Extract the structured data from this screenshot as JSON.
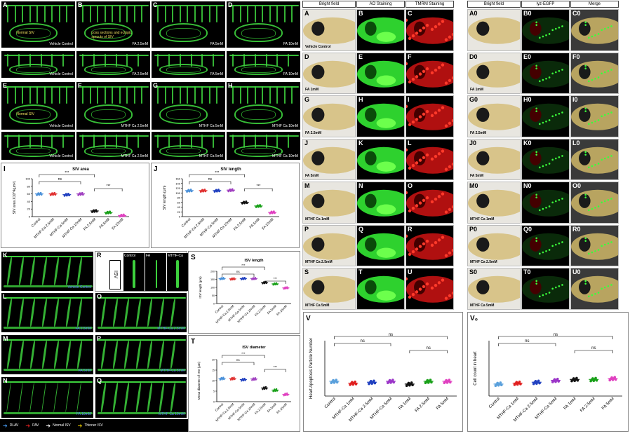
{
  "left_top_panels": [
    {
      "id": "A",
      "caption": "Vehicle Control",
      "annot": "Normal SIV"
    },
    {
      "id": "B",
      "caption": "FA  2.5mM",
      "annot": "Loss sections and ectopic sprouts of SIV"
    },
    {
      "id": "C",
      "caption": "FA  5mM",
      "annot": ""
    },
    {
      "id": "D",
      "caption": "FA  10mM",
      "annot": ""
    }
  ],
  "left_top_zoom": [
    {
      "caption": "Vehicle Control"
    },
    {
      "caption": "FA  2.5mM"
    },
    {
      "caption": "FA  5mM"
    },
    {
      "caption": "FA  10mM"
    }
  ],
  "left_mid_panels": [
    {
      "id": "E",
      "caption": "Vehicle Control",
      "annot": "Normal SIV"
    },
    {
      "id": "F",
      "caption": "MTHF Ca  2.5mM",
      "annot": ""
    },
    {
      "id": "G",
      "caption": "MTHF Ca  5mM",
      "annot": ""
    },
    {
      "id": "H",
      "caption": "MTHF Ca  10mM",
      "annot": ""
    }
  ],
  "left_mid_zoom": [
    {
      "caption": "Vehicle Control"
    },
    {
      "caption": "MTHF Ca 2.5mM"
    },
    {
      "caption": "MTHF Ca  5mM"
    },
    {
      "caption": "MTHF Ca  10mM"
    }
  ],
  "panel_I_label": "I",
  "panel_J_label": "J",
  "isv_panels": [
    {
      "id": "K",
      "caption": "Vehicle Control"
    },
    {
      "id": "L",
      "caption": "FA  2.5mM"
    },
    {
      "id": "M",
      "caption": "FA  5mM"
    },
    {
      "id": "N",
      "caption": "FA  10mM"
    },
    {
      "id": "O",
      "caption": "MTHF-Ca  2.5mM"
    },
    {
      "id": "P",
      "caption": "MTHF-Ca  5mM"
    },
    {
      "id": "Q",
      "caption": "MTHF Ca 10mM"
    }
  ],
  "panel_R": {
    "id": "R",
    "side": "ISV",
    "cols": [
      "Control",
      "FA",
      "MTHF-Ca"
    ]
  },
  "legend_arrows": [
    {
      "label": "DLAV",
      "color": "#4aa3ff"
    },
    {
      "label": "PAV",
      "color": "#e02020"
    },
    {
      "label": "Normal ISV",
      "color": "#ffffff"
    },
    {
      "label": "Thinner ISV",
      "color": "#f0d000"
    }
  ],
  "middle_headers": [
    "Bright field",
    "AO Staining",
    "TMRM Staining"
  ],
  "middle_rows": [
    {
      "ids": [
        "A",
        "B",
        "C"
      ],
      "caption": "Vehicle Control"
    },
    {
      "ids": [
        "D",
        "E",
        "F"
      ],
      "caption": "FA  1mM"
    },
    {
      "ids": [
        "G",
        "H",
        "I"
      ],
      "caption": "FA 2.5mM"
    },
    {
      "ids": [
        "J",
        "K",
        "L"
      ],
      "caption": "FA  5mM"
    },
    {
      "ids": [
        "M",
        "N",
        "O"
      ],
      "caption": "MTHF Ca  1mM"
    },
    {
      "ids": [
        "P",
        "Q",
        "R"
      ],
      "caption": "MTHF Ca 2.5mM"
    },
    {
      "ids": [
        "S",
        "T",
        "U"
      ],
      "caption": "MTHF Ca 5mM"
    }
  ],
  "right_headers": [
    "Bright field",
    "lyz-EGFP",
    "Merge"
  ],
  "right_rows": [
    {
      "ids": [
        "A",
        "B",
        "C"
      ],
      "caption": ""
    },
    {
      "ids": [
        "D",
        "E",
        "F"
      ],
      "caption": "FA  1mM"
    },
    {
      "ids": [
        "G",
        "H",
        "I"
      ],
      "caption": "FA  2.5mM"
    },
    {
      "ids": [
        "J",
        "K",
        "L"
      ],
      "caption": "FA  5mM"
    },
    {
      "ids": [
        "M",
        "N",
        "O"
      ],
      "caption": "MTHF Ca  1mM"
    },
    {
      "ids": [
        "P",
        "Q",
        "R"
      ],
      "caption": "MTHF Ca  2.5mM"
    },
    {
      "ids": [
        "S",
        "T",
        "U"
      ],
      "caption": "MTHF Ca  5mM"
    }
  ],
  "right_sub": "0",
  "chart_data": [
    {
      "id": "I",
      "type": "scatter",
      "title": "SIV area",
      "ylabel": "SIV area X10^4(μm²)",
      "categories": [
        "Control",
        "MTHF-Ca 2.5mM",
        "MTHF-Ca 5mM",
        "MTHF-Ca 10mM",
        "FA 2.5mM",
        "FA 5mM",
        "FA 10mM"
      ],
      "means": [
        60,
        60,
        58,
        60,
        15,
        11,
        3
      ],
      "colors": [
        "#4a90d9",
        "#e03030",
        "#2040c0",
        "#a040c0",
        "#111111",
        "#18a018",
        "#e040c0"
      ],
      "ylim": [
        0,
        100
      ],
      "yticks": [
        0,
        20,
        40,
        60,
        80,
        100
      ],
      "annotations": [
        "ns",
        "***",
        "***"
      ]
    },
    {
      "id": "J",
      "type": "scatter",
      "title": "SIV length",
      "ylabel": "SIV length (μm)",
      "categories": [
        "Control",
        "MTHF-Ca 2.5mM",
        "MTHF-Ca 5mM",
        "MTHF-Ca 10mM",
        "FA 2.5mM",
        "FA 5mM",
        "FA 10mM"
      ],
      "means": [
        110,
        110,
        110,
        112,
        60,
        45,
        18
      ],
      "colors": [
        "#4a90d9",
        "#e03030",
        "#2040c0",
        "#a040c0",
        "#111111",
        "#18a018",
        "#e040c0"
      ],
      "ylim": [
        0,
        160
      ],
      "yticks": [
        0,
        20,
        40,
        60,
        80,
        100,
        120,
        140,
        160
      ],
      "annotations": [
        "ns",
        "***",
        "***"
      ]
    },
    {
      "id": "S",
      "type": "scatter",
      "title": "ISV length",
      "ylabel": "ISV length (μm)",
      "categories": [
        "Control",
        "MTHF-Ca 2.5mM",
        "MTHF-Ca 5mM",
        "MTHF-Ca 10mM",
        "FA 2.5mM",
        "FA 5mM",
        "FA 10mM"
      ],
      "means": [
        155,
        153,
        155,
        155,
        130,
        122,
        97
      ],
      "colors": [
        "#4a90d9",
        "#e03030",
        "#2040c0",
        "#a040c0",
        "#111111",
        "#18a018",
        "#e040c0"
      ],
      "ylim": [
        0,
        200
      ],
      "yticks": [
        0,
        50,
        100,
        150,
        200
      ],
      "annotations": [
        "ns",
        "***",
        "***"
      ]
    },
    {
      "id": "T",
      "type": "scatter",
      "title": "ISV diameter",
      "ylabel": "Mean diameter of ISV (μm)",
      "categories": [
        "Control",
        "MTHF-Ca 2.5mM",
        "MTHF-Ca 5mM",
        "MTHF-Ca 10mM",
        "FA 2.5mM",
        "FA 5mM",
        "FA 10mM"
      ],
      "means": [
        11,
        11,
        10.5,
        10.8,
        6.5,
        5.5,
        3.5
      ],
      "colors": [
        "#4a90d9",
        "#e03030",
        "#2040c0",
        "#a040c0",
        "#111111",
        "#18a018",
        "#e040c0"
      ],
      "ylim": [
        0,
        20
      ],
      "yticks": [
        0,
        5,
        10,
        15,
        20
      ],
      "annotations": [
        "ns",
        "***",
        "***"
      ]
    },
    {
      "id": "V",
      "type": "scatter",
      "title": "",
      "ylabel": "Heart Apoptosis Particle Number",
      "categories": [
        "Control",
        "MTHF-Ca 1mM",
        "MTHF-Ca 2.5mM",
        "MTHF-Ca 5mM",
        "FA 1mM",
        "FA 2.5mM",
        "FA 5mM"
      ],
      "means": [
        1.6,
        1.4,
        1.5,
        1.6,
        1.3,
        1.6,
        1.6
      ],
      "colors": [
        "#5aa0dc",
        "#e02020",
        "#2040c0",
        "#9b35c8",
        "#111111",
        "#18a018",
        "#e040c0"
      ],
      "ylim": [
        0,
        6
      ],
      "yticks": [],
      "annotations": [
        "ns",
        "ns",
        "ns"
      ]
    },
    {
      "id": "V0",
      "type": "scatter",
      "title": "",
      "ylabel": "Cell count in heart",
      "categories": [
        "Control",
        "MTHF-Ca 1mM",
        "MTHF-Ca 2.5mM",
        "MTHF-Ca 5mM",
        "FA 1mM",
        "FA 2.5mM",
        "FA 5mM"
      ],
      "means": [
        1.3,
        1.4,
        1.5,
        1.7,
        1.8,
        1.8,
        1.9
      ],
      "colors": [
        "#5aa0dc",
        "#e02020",
        "#2040c0",
        "#9b35c8",
        "#111111",
        "#18a018",
        "#e040c0"
      ],
      "ylim": [
        0,
        6
      ],
      "yticks": [],
      "annotations": [
        "ns",
        "ns",
        "ns"
      ]
    }
  ]
}
